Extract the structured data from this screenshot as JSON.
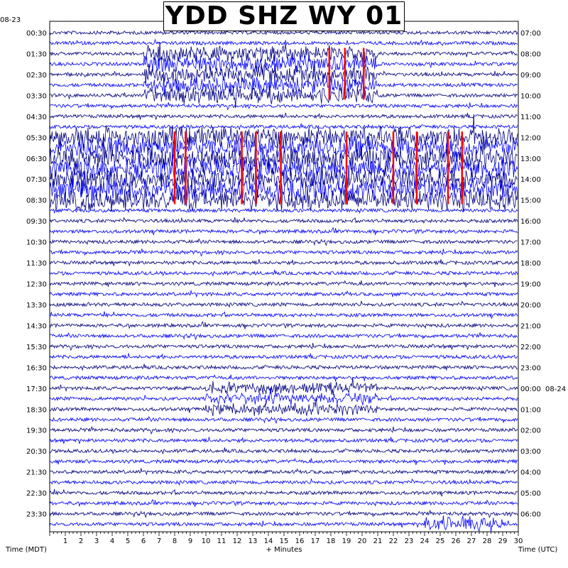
{
  "chart_data": {
    "type": "line",
    "subtype": "helicorder",
    "title": "YDD SHZ WY 01",
    "start_date_left": "08-23",
    "date_change_right": "08-24",
    "left_axis_label": "Time (MDT)",
    "right_axis_label": "Time (UTC)",
    "x_axis_label": "+ Minutes",
    "x_range": [
      0,
      30
    ],
    "x_ticks": [
      "1",
      "2",
      "3",
      "4",
      "5",
      "6",
      "7",
      "8",
      "9",
      "10",
      "11",
      "12",
      "13",
      "14",
      "15",
      "16",
      "17",
      "18",
      "19",
      "20",
      "21",
      "22",
      "23",
      "24",
      "25",
      "26",
      "27",
      "28",
      "29",
      "30"
    ],
    "left_time_labels": [
      "00:30",
      "01:30",
      "02:30",
      "03:30",
      "04:30",
      "05:30",
      "06:30",
      "07:30",
      "08:30",
      "09:30",
      "10:30",
      "11:30",
      "12:30",
      "13:30",
      "14:30",
      "15:30",
      "16:30",
      "17:30",
      "18:30",
      "19:30",
      "20:30",
      "21:30",
      "22:30",
      "23:30"
    ],
    "right_time_labels": [
      "07:00",
      "08:00",
      "09:00",
      "10:00",
      "11:00",
      "12:00",
      "13:00",
      "14:00",
      "15:00",
      "16:00",
      "17:00",
      "18:00",
      "19:00",
      "20:00",
      "21:00",
      "22:00",
      "23:00",
      "00:00",
      "01:00",
      "02:00",
      "03:00",
      "04:00",
      "05:00",
      "06:00"
    ],
    "trace_count": 48,
    "trace_colors": [
      "#000080",
      "#0000ff"
    ],
    "clip_color": "#ff0000",
    "grid": true,
    "high_activity_ranges": [
      {
        "rows": [
          2,
          6
        ],
        "minutes": [
          6,
          21
        ],
        "amplitude": 14,
        "clipped_minutes": [
          17.9,
          18.9,
          20.1
        ]
      },
      {
        "rows": [
          10,
          16
        ],
        "minutes": [
          0,
          30
        ],
        "amplitude": 18,
        "clipped_minutes": [
          8,
          8.7,
          12.3,
          13.2,
          14.8,
          19,
          22,
          23.5,
          25.5,
          26.4
        ]
      },
      {
        "rows": [
          34,
          36
        ],
        "minutes": [
          10,
          21
        ],
        "amplitude": 10,
        "clipped_minutes": []
      },
      {
        "rows": [
          47,
          47
        ],
        "minutes": [
          24,
          29
        ],
        "amplitude": 12,
        "clipped_minutes": []
      }
    ]
  }
}
